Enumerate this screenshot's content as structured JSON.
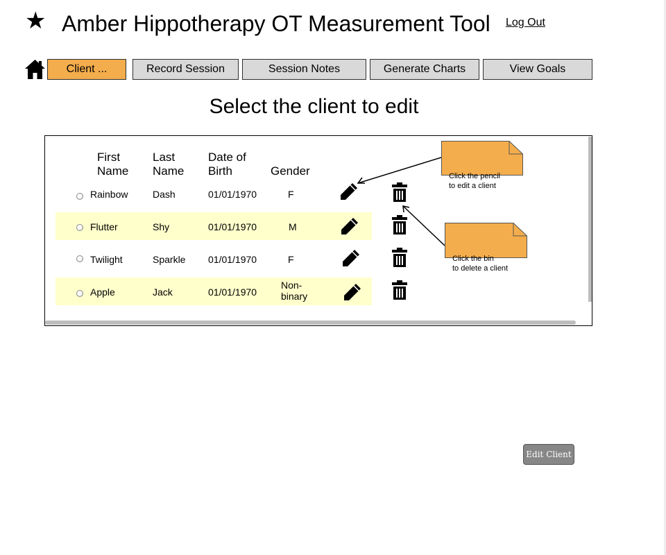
{
  "header": {
    "star_glyph": "★",
    "title": "Amber Hippotherapy OT Measurement Tool",
    "logout_label": "Log Out"
  },
  "nav": {
    "home_icon": "home-icon",
    "tabs": [
      {
        "label": "Client ...",
        "active": true
      },
      {
        "label": "Record Session",
        "active": false
      },
      {
        "label": "Session Notes",
        "active": false
      },
      {
        "label": "Generate Charts",
        "active": false
      },
      {
        "label": "View Goals",
        "active": false
      }
    ]
  },
  "page": {
    "heading": "Select the client to edit"
  },
  "table": {
    "headers": {
      "first_name": [
        "First",
        "Name"
      ],
      "last_name": [
        "Last",
        "Name"
      ],
      "dob": [
        "Date of",
        "Birth"
      ],
      "gender": "Gender"
    },
    "rows": [
      {
        "first": "Rainbow",
        "last": "Dash",
        "dob": "01/01/1970",
        "gender": "F",
        "highlighted": false
      },
      {
        "first": "Flutter",
        "last": "Shy",
        "dob": "01/01/1970",
        "gender": "M",
        "highlighted": true
      },
      {
        "first": "Twilight",
        "last": "Sparkle",
        "dob": "01/01/1970",
        "gender": "F",
        "highlighted": false
      },
      {
        "first": "Apple",
        "last": "Jack",
        "dob": "01/01/1970",
        "gender": [
          "Non-",
          "binary"
        ],
        "highlighted": true
      }
    ],
    "row_icons": {
      "edit": "pencil-icon",
      "delete": "trash-icon"
    }
  },
  "notes": {
    "pencil": [
      "Click the pencil",
      "to edit a client"
    ],
    "bin": [
      "Click the bin",
      "to delete a client"
    ]
  },
  "actions": {
    "edit_client_label": "Edit Client"
  },
  "colors": {
    "active_tab": "#f4ad4c",
    "inactive_tab": "#d9d9d9",
    "row_highlight": "#ffffcc",
    "note_fill": "#f4ad4c",
    "edit_button": "#878787"
  }
}
